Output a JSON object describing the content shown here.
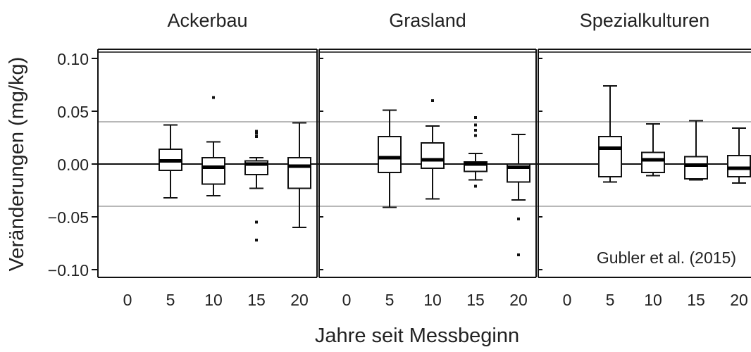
{
  "chart_data": {
    "type": "box",
    "ylabel": "Veränderungen (mg/kg)",
    "xlabel": "Jahre seit Messbeginn",
    "ylim": [
      -0.11,
      0.11
    ],
    "yticks": [
      0.1,
      0.05,
      0.0,
      -0.05,
      -0.1
    ],
    "ytick_labels": [
      "0.10",
      "0.05",
      "0.00",
      "−0.05",
      "−0.10"
    ],
    "xticks": [
      0,
      5,
      10,
      15,
      20
    ],
    "reference_lines": [
      0.04,
      0.0,
      -0.04
    ],
    "annotation": "Gubler et al. (2015)",
    "panels": [
      {
        "title": "Ackerbau",
        "boxes": [
          {
            "x": 5,
            "whislo": -0.032,
            "q1": -0.006,
            "med": 0.003,
            "q3": 0.014,
            "whishi": 0.037,
            "fliers": []
          },
          {
            "x": 10,
            "whislo": -0.03,
            "q1": -0.019,
            "med": -0.003,
            "q3": 0.006,
            "whishi": 0.021,
            "fliers": [
              0.063
            ]
          },
          {
            "x": 15,
            "whislo": -0.023,
            "q1": -0.01,
            "med": 0.0,
            "q3": 0.003,
            "whishi": 0.006,
            "fliers": [
              0.031,
              0.029,
              0.026,
              -0.055,
              -0.072
            ]
          },
          {
            "x": 20,
            "whislo": -0.06,
            "q1": -0.023,
            "med": -0.002,
            "q3": 0.006,
            "whishi": 0.039,
            "fliers": []
          }
        ]
      },
      {
        "title": "Grasland",
        "boxes": [
          {
            "x": 5,
            "whislo": -0.041,
            "q1": -0.008,
            "med": 0.006,
            "q3": 0.026,
            "whishi": 0.051,
            "fliers": []
          },
          {
            "x": 10,
            "whislo": -0.033,
            "q1": -0.004,
            "med": 0.004,
            "q3": 0.02,
            "whishi": 0.036,
            "fliers": [
              0.06
            ]
          },
          {
            "x": 15,
            "whislo": -0.015,
            "q1": -0.007,
            "med": 0.0,
            "q3": 0.002,
            "whishi": 0.01,
            "fliers": [
              0.044,
              0.037,
              0.032,
              0.027,
              -0.021
            ]
          },
          {
            "x": 20,
            "whislo": -0.034,
            "q1": -0.017,
            "med": -0.003,
            "q3": 0.0,
            "whishi": 0.028,
            "fliers": [
              -0.052,
              -0.086
            ]
          }
        ]
      },
      {
        "title": "Spezialkulturen",
        "boxes": [
          {
            "x": 5,
            "whislo": -0.017,
            "q1": -0.012,
            "med": 0.015,
            "q3": 0.026,
            "whishi": 0.074,
            "fliers": []
          },
          {
            "x": 10,
            "whislo": -0.011,
            "q1": -0.008,
            "med": 0.004,
            "q3": 0.011,
            "whishi": 0.038,
            "fliers": []
          },
          {
            "x": 15,
            "whislo": -0.015,
            "q1": -0.014,
            "med": -0.001,
            "q3": 0.007,
            "whishi": 0.041,
            "fliers": []
          },
          {
            "x": 20,
            "whislo": -0.018,
            "q1": -0.012,
            "med": -0.004,
            "q3": 0.008,
            "whishi": 0.034,
            "fliers": []
          }
        ]
      }
    ]
  }
}
